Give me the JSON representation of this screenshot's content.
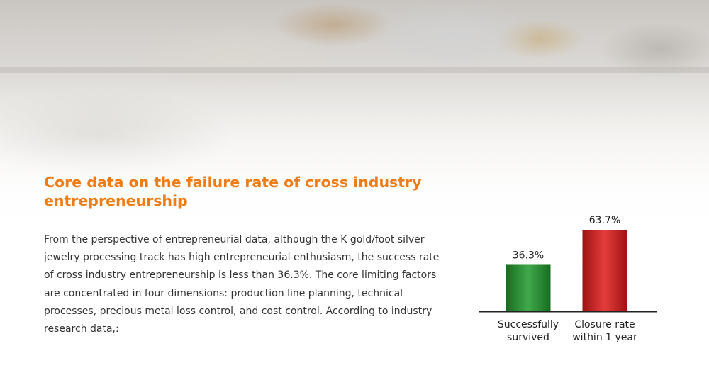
{
  "slide": {
    "title": "Core data on the failure rate of cross industry entrepreneurship",
    "body": "From the perspective of entrepreneurial data, although the K gold/foot silver jewelry processing track has high entrepreneurial enthusiasm, the success rate of cross industry entrepreneurship is less than 36.3%. The core limiting factors are concentrated in four dimensions: production line planning, technical processes, precious metal loss control, and cost control. According to industry research data,:"
  },
  "chart_data": {
    "type": "bar",
    "categories": [
      "Successfully survived",
      "Closure rate within 1 year"
    ],
    "category_lines": [
      [
        "Successfully",
        "survived"
      ],
      [
        "Closure rate",
        "within 1 year"
      ]
    ],
    "values": [
      36.3,
      63.7
    ],
    "data_labels": [
      "36.3%",
      "63.7%"
    ],
    "colors": [
      "#1f9a2c",
      "#e11a1a"
    ],
    "ylim": [
      0,
      63.7
    ],
    "grid": false,
    "title": "",
    "xlabel": "",
    "ylabel": ""
  },
  "colors": {
    "accent": "#f07c16",
    "text": "#333333"
  }
}
